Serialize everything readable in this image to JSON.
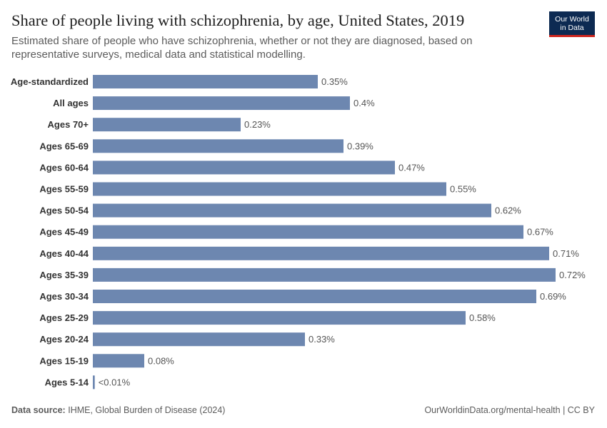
{
  "header": {
    "title": "Share of people living with schizophrenia, by age, United States, 2019",
    "subtitle": "Estimated share of people who have schizophrenia, whether or not they are diagnosed, based on representative surveys, medical data and statistical modelling."
  },
  "logo": {
    "line1": "Our World",
    "line2": "in Data"
  },
  "footer": {
    "source_label": "Data source:",
    "source_text": "IHME, Global Burden of Disease (2024)",
    "credit": "OurWorldinData.org/mental-health | CC BY"
  },
  "colors": {
    "bar": "#6d87b0",
    "label_text": "#555555",
    "category_text": "#333333",
    "logo_bg": "#0d2a52",
    "logo_accent": "#ce261e"
  },
  "chart_data": {
    "type": "bar",
    "orientation": "horizontal",
    "title": "Share of people living with schizophrenia, by age, United States, 2019",
    "xlabel": "",
    "ylabel": "",
    "xlim": [
      0,
      0.72
    ],
    "categories": [
      "Age-standardized",
      "All ages",
      "Ages 70+",
      "Ages 65-69",
      "Ages 60-64",
      "Ages 55-59",
      "Ages 50-54",
      "Ages 45-49",
      "Ages 40-44",
      "Ages 35-39",
      "Ages 30-34",
      "Ages 25-29",
      "Ages 20-24",
      "Ages 15-19",
      "Ages 5-14"
    ],
    "values": [
      0.35,
      0.4,
      0.23,
      0.39,
      0.47,
      0.55,
      0.62,
      0.67,
      0.71,
      0.72,
      0.69,
      0.58,
      0.33,
      0.08,
      0.003
    ],
    "value_labels": [
      "0.35%",
      "0.4%",
      "0.23%",
      "0.39%",
      "0.47%",
      "0.55%",
      "0.62%",
      "0.67%",
      "0.71%",
      "0.72%",
      "0.69%",
      "0.58%",
      "0.33%",
      "0.08%",
      "<0.01%"
    ],
    "unit": "%"
  }
}
